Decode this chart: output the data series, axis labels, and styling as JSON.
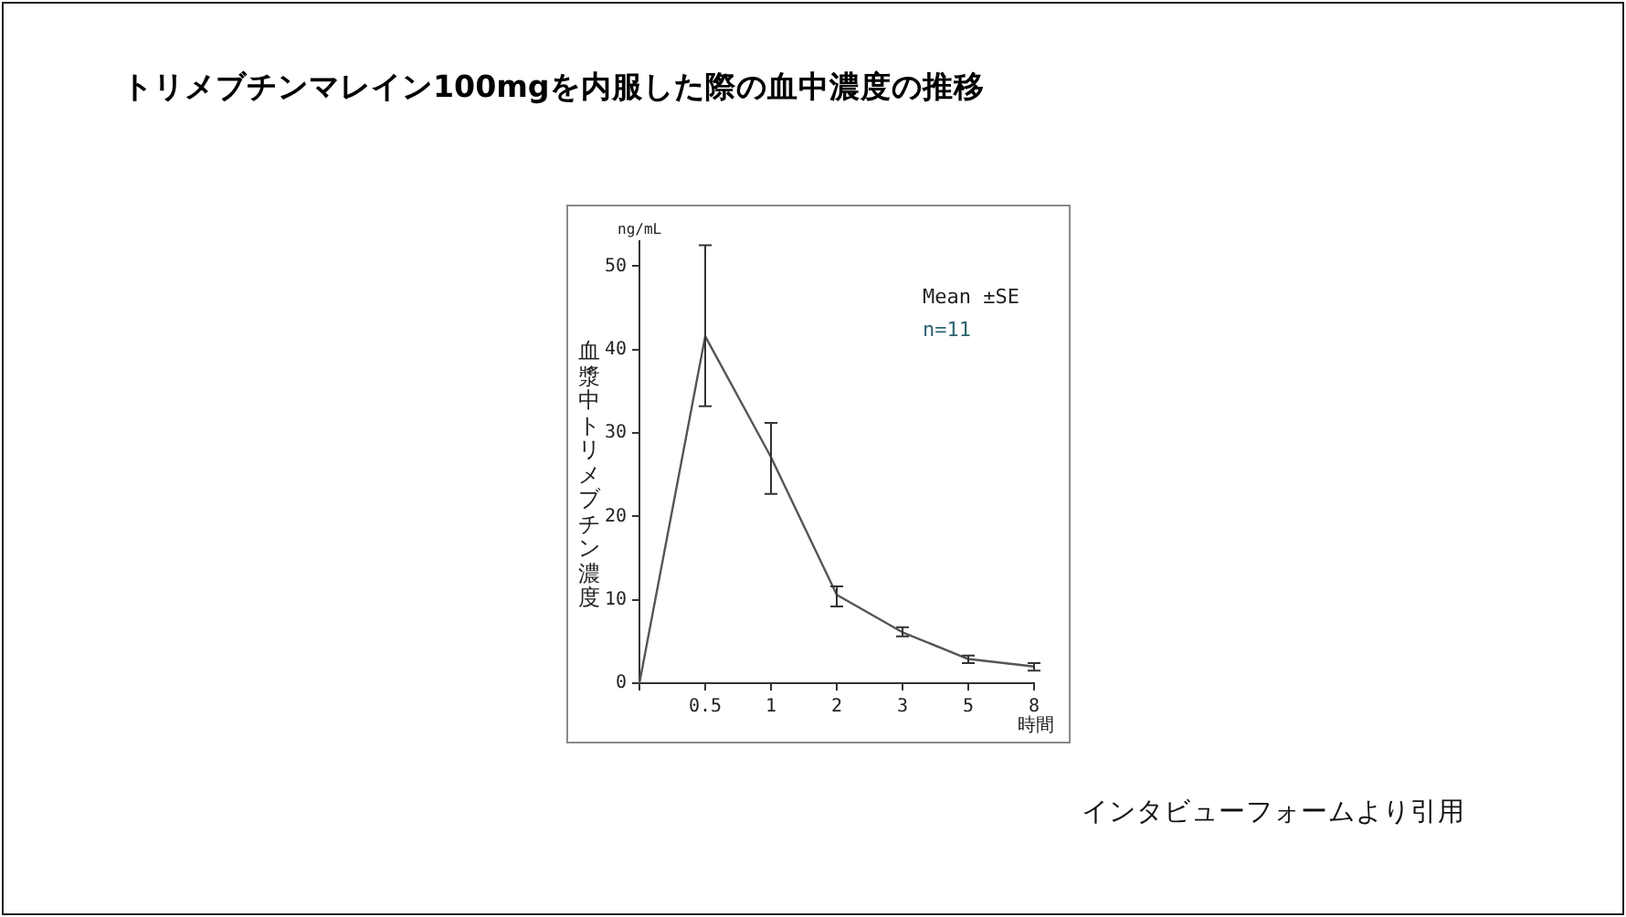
{
  "chart_data": {
    "type": "line",
    "title": "トリメブチンマレイン100mgを内服した際の血中濃度の推移",
    "xlabel": "時間",
    "ylabel": "血漿中トリメブチン濃度",
    "annotations": [
      "Mean ±SE",
      "n=11",
      "ng/mL",
      "インタビューフォームより引用"
    ],
    "categories": [
      null,
      "0.5",
      "1",
      "2",
      "3",
      "5",
      "8"
    ],
    "values": [
      0,
      41.6,
      27.1,
      10.6,
      6.1,
      2.9,
      2.0
    ],
    "errors": [
      null,
      [
        33.2,
        52.5
      ],
      [
        22.7,
        31.2
      ],
      [
        9.2,
        11.6
      ],
      [
        5.6,
        6.7
      ],
      [
        2.4,
        3.3
      ],
      [
        1.5,
        2.4
      ]
    ],
    "color": "#555555",
    "ylim": [
      0,
      53
    ],
    "yticks": [
      0,
      10,
      20,
      30,
      40,
      50
    ],
    "grid": false,
    "legend": false,
    "marker": "none",
    "line_style": "solid"
  }
}
